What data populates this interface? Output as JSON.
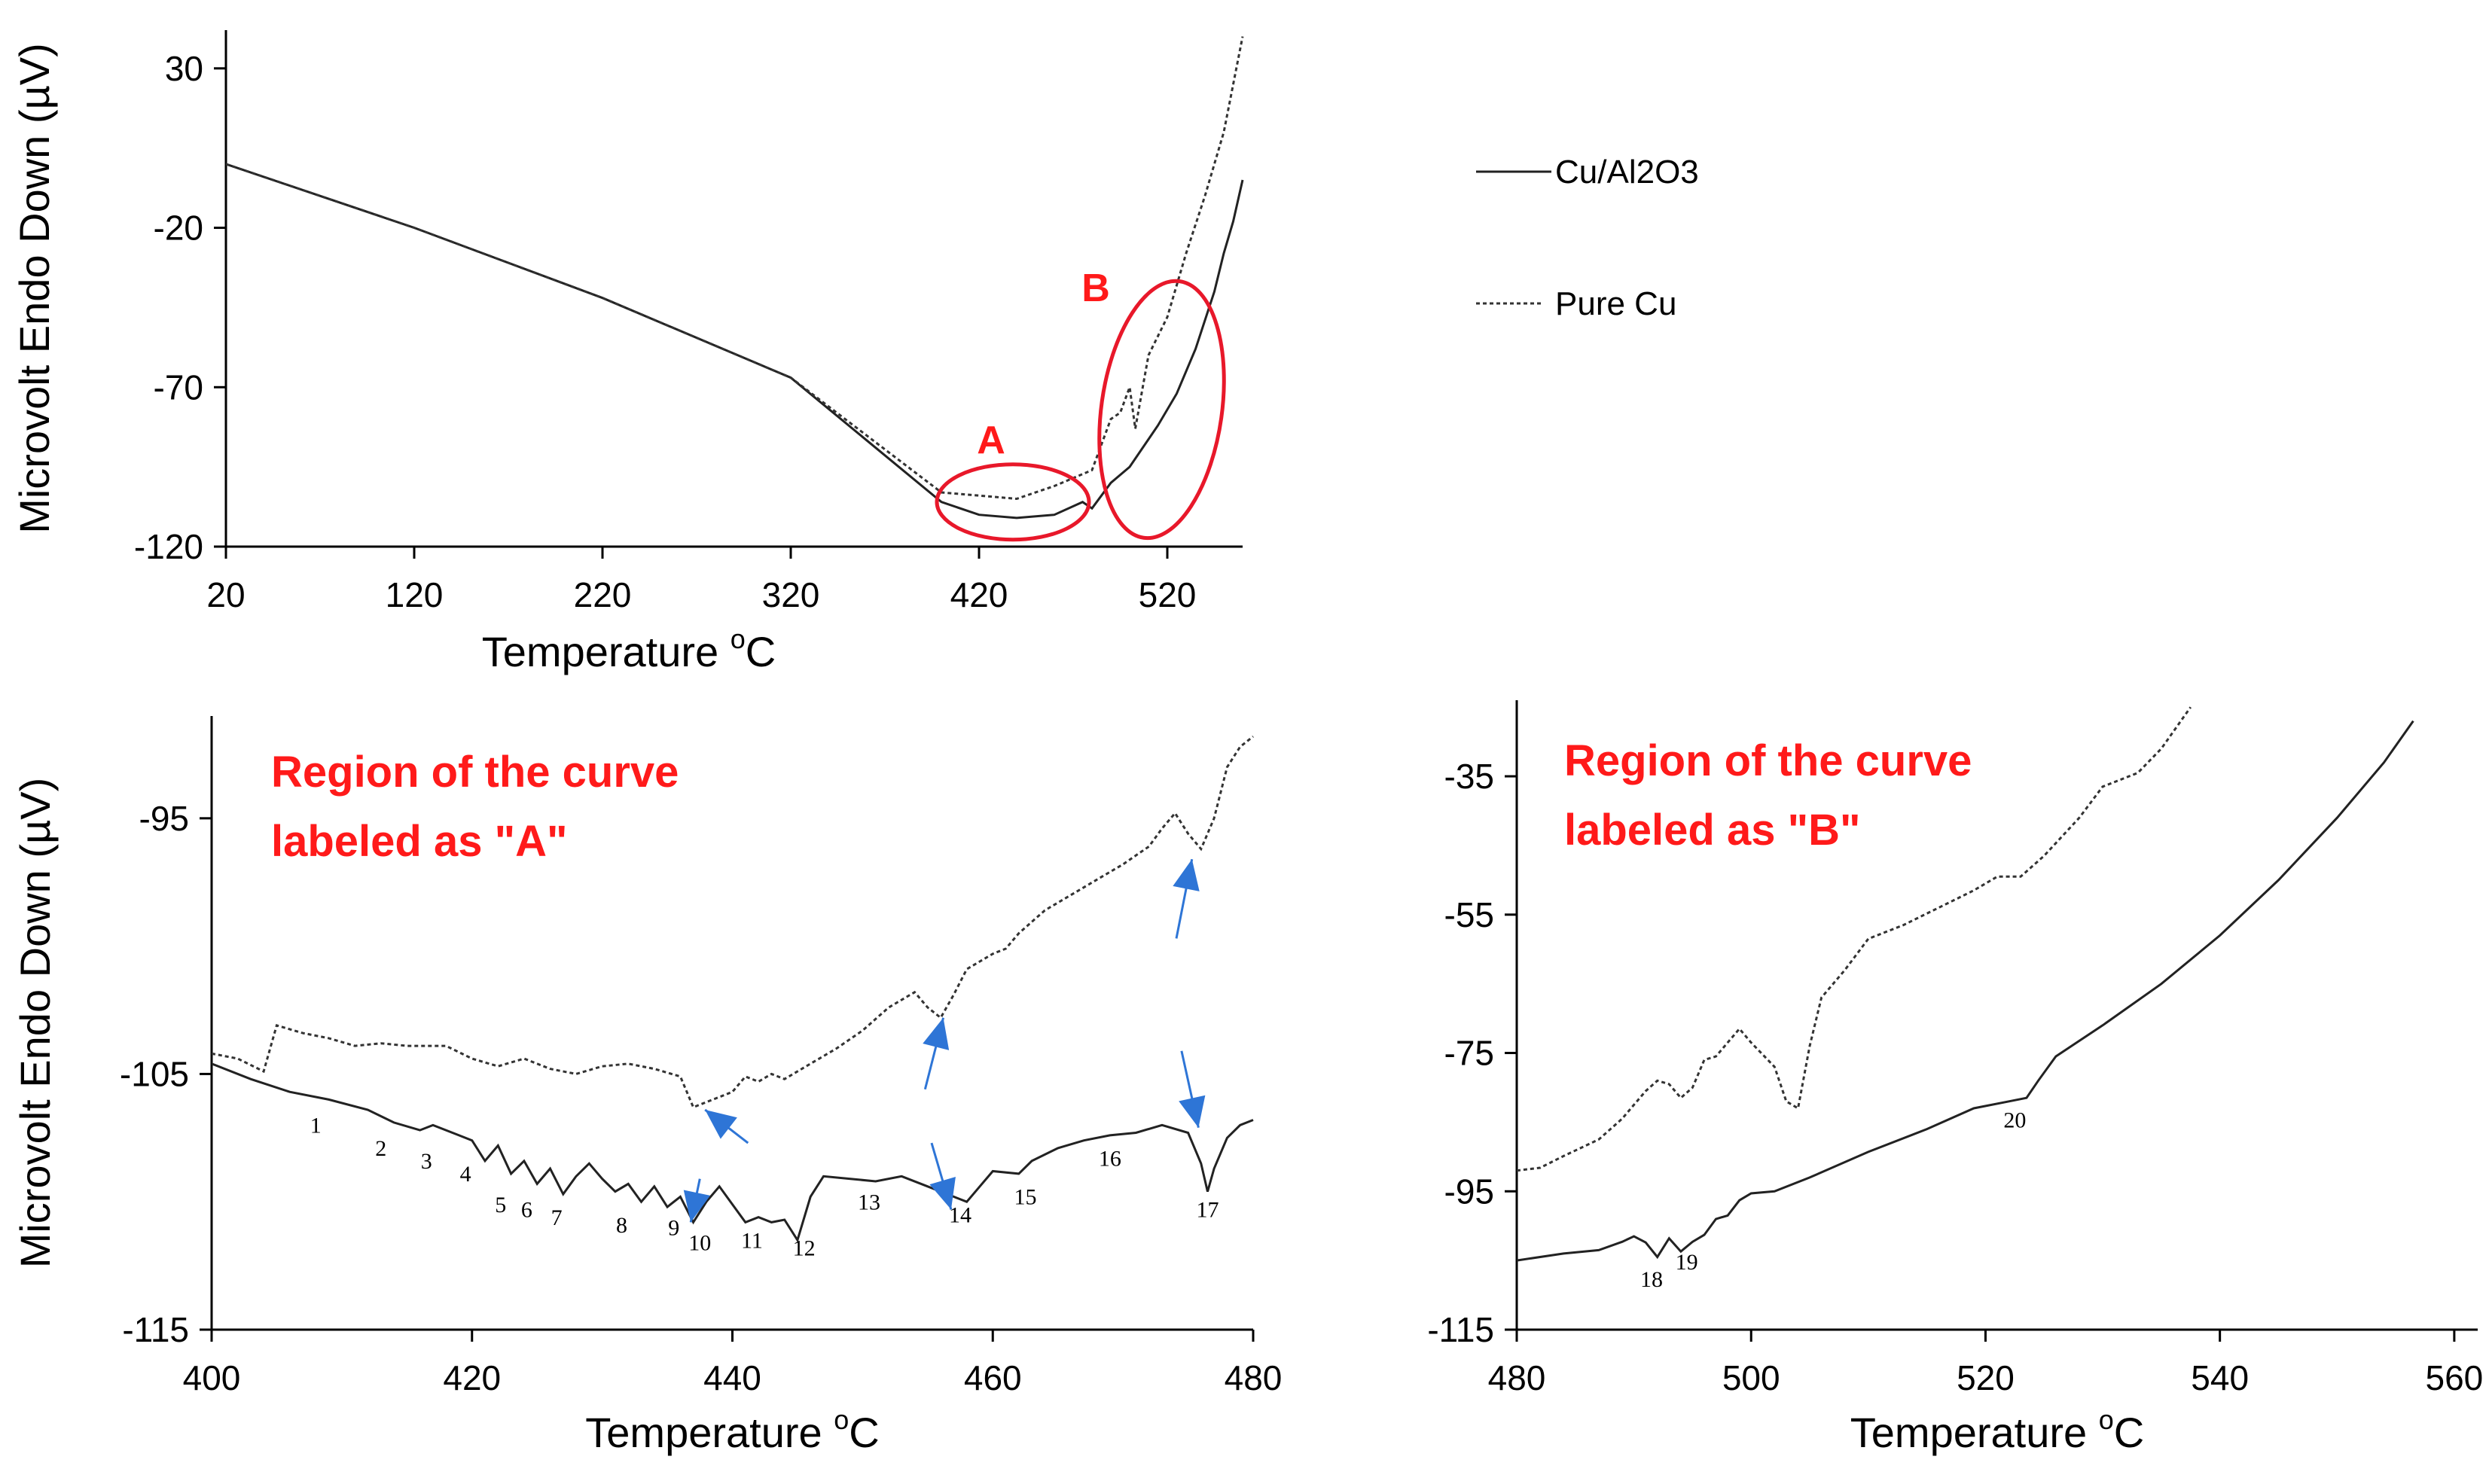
{
  "chart_data": [
    {
      "type": "line",
      "id": "overview",
      "xlabel": "Temperature",
      "xlabel_sup": "o",
      "xlabel_unit": "C",
      "ylabel": "Microvolt Endo Down (µV)",
      "xlim": [
        20,
        560
      ],
      "ylim": [
        -120,
        42
      ],
      "xticks": [
        20,
        120,
        220,
        320,
        420,
        520
      ],
      "yticks": [
        30,
        -20,
        -70,
        -120
      ],
      "legend_position": "right",
      "series": [
        {
          "name": "Cu/Al2O3",
          "style": "solid",
          "points": [
            [
              20,
              0
            ],
            [
              120,
              -20
            ],
            [
              220,
              -42
            ],
            [
              320,
              -67
            ],
            [
              400,
              -106
            ],
            [
              420,
              -110
            ],
            [
              440,
              -111
            ],
            [
              460,
              -110
            ],
            [
              475,
              -106
            ],
            [
              480,
              -108
            ],
            [
              490,
              -100
            ],
            [
              500,
              -95
            ],
            [
              515,
              -82
            ],
            [
              525,
              -72
            ],
            [
              535,
              -58
            ],
            [
              545,
              -40
            ],
            [
              550,
              -28
            ],
            [
              555,
              -18
            ],
            [
              560,
              -5
            ]
          ]
        },
        {
          "name": "Pure Cu",
          "style": "dashed",
          "points": [
            [
              20,
              0
            ],
            [
              120,
              -20
            ],
            [
              220,
              -42
            ],
            [
              320,
              -67
            ],
            [
              400,
              -103
            ],
            [
              420,
              -104
            ],
            [
              440,
              -105
            ],
            [
              460,
              -101
            ],
            [
              480,
              -96
            ],
            [
              490,
              -80
            ],
            [
              495,
              -78
            ],
            [
              500,
              -70
            ],
            [
              503,
              -83
            ],
            [
              510,
              -60
            ],
            [
              520,
              -48
            ],
            [
              530,
              -28
            ],
            [
              540,
              -10
            ],
            [
              550,
              10
            ],
            [
              560,
              40
            ]
          ]
        }
      ],
      "annotations": [
        {
          "label": "A",
          "center": [
            438,
            -106
          ]
        },
        {
          "label": "B",
          "center": [
            517,
            -77
          ]
        }
      ]
    },
    {
      "type": "line",
      "id": "region_a",
      "title": "Region of the curve labeled as \"A\"",
      "xlabel": "Temperature",
      "xlabel_sup": "o",
      "xlabel_unit": "C",
      "ylabel": "Microvolt Endo Down (µV)",
      "xlim": [
        400,
        480
      ],
      "ylim": [
        -115,
        -91
      ],
      "xticks": [
        400,
        420,
        440,
        460,
        480
      ],
      "yticks": [
        -95,
        -105,
        -115
      ],
      "series": [
        {
          "name": "Cu/Al2O3",
          "style": "solid",
          "points": [
            [
              400,
              -104.6
            ],
            [
              403,
              -105.2
            ],
            [
              406,
              -105.7
            ],
            [
              409,
              -106.0
            ],
            [
              412,
              -106.4
            ],
            [
              414,
              -106.9
            ],
            [
              416,
              -107.2
            ],
            [
              417,
              -107.0
            ],
            [
              419,
              -107.4
            ],
            [
              420,
              -107.6
            ],
            [
              421,
              -108.4
            ],
            [
              422,
              -107.8
            ],
            [
              423,
              -108.9
            ],
            [
              424,
              -108.4
            ],
            [
              425,
              -109.3
            ],
            [
              426,
              -108.7
            ],
            [
              427,
              -109.7
            ],
            [
              428,
              -109.0
            ],
            [
              429,
              -108.5
            ],
            [
              430,
              -109.1
            ],
            [
              431,
              -109.6
            ],
            [
              432,
              -109.3
            ],
            [
              433,
              -110.0
            ],
            [
              434,
              -109.4
            ],
            [
              435,
              -110.2
            ],
            [
              436,
              -109.8
            ],
            [
              437,
              -110.8
            ],
            [
              438,
              -110.0
            ],
            [
              439,
              -109.4
            ],
            [
              440,
              -110.1
            ],
            [
              441,
              -110.8
            ],
            [
              442,
              -110.6
            ],
            [
              443,
              -110.8
            ],
            [
              444,
              -110.7
            ],
            [
              445,
              -111.5
            ],
            [
              446,
              -109.8
            ],
            [
              447,
              -109.0
            ],
            [
              449,
              -109.1
            ],
            [
              451,
              -109.2
            ],
            [
              453,
              -109.0
            ],
            [
              455,
              -109.4
            ],
            [
              457,
              -109.8
            ],
            [
              458,
              -110.0
            ],
            [
              459,
              -109.4
            ],
            [
              460,
              -108.8
            ],
            [
              462,
              -108.9
            ],
            [
              463,
              -108.4
            ],
            [
              465,
              -107.9
            ],
            [
              467,
              -107.6
            ],
            [
              469,
              -107.4
            ],
            [
              471,
              -107.3
            ],
            [
              473,
              -107.0
            ],
            [
              475,
              -107.3
            ],
            [
              476,
              -108.5
            ],
            [
              476.5,
              -109.6
            ],
            [
              477,
              -108.7
            ],
            [
              478,
              -107.5
            ],
            [
              479,
              -107.0
            ],
            [
              480,
              -106.8
            ]
          ]
        },
        {
          "name": "Pure Cu",
          "style": "dashed",
          "points": [
            [
              400,
              -104.2
            ],
            [
              402,
              -104.4
            ],
            [
              404,
              -104.9
            ],
            [
              405,
              -103.1
            ],
            [
              407,
              -103.4
            ],
            [
              409,
              -103.6
            ],
            [
              411,
              -103.9
            ],
            [
              413,
              -103.8
            ],
            [
              415,
              -103.9
            ],
            [
              418,
              -103.9
            ],
            [
              420,
              -104.4
            ],
            [
              422,
              -104.7
            ],
            [
              424,
              -104.4
            ],
            [
              426,
              -104.8
            ],
            [
              428,
              -105.0
            ],
            [
              430,
              -104.7
            ],
            [
              432,
              -104.6
            ],
            [
              434,
              -104.8
            ],
            [
              436,
              -105.1
            ],
            [
              437,
              -106.3
            ],
            [
              438,
              -106.1
            ],
            [
              440,
              -105.7
            ],
            [
              441,
              -105.1
            ],
            [
              442,
              -105.3
            ],
            [
              443,
              -105.0
            ],
            [
              444,
              -105.2
            ],
            [
              446,
              -104.6
            ],
            [
              448,
              -104.0
            ],
            [
              450,
              -103.3
            ],
            [
              452,
              -102.4
            ],
            [
              454,
              -101.8
            ],
            [
              455,
              -102.4
            ],
            [
              456,
              -102.8
            ],
            [
              457,
              -101.9
            ],
            [
              458,
              -100.9
            ],
            [
              460,
              -100.3
            ],
            [
              461,
              -100.1
            ],
            [
              462,
              -99.5
            ],
            [
              464,
              -98.6
            ],
            [
              466,
              -98.0
            ],
            [
              468,
              -97.4
            ],
            [
              470,
              -96.8
            ],
            [
              472,
              -96.1
            ],
            [
              473,
              -95.4
            ],
            [
              474,
              -94.8
            ],
            [
              475,
              -95.6
            ],
            [
              476,
              -96.2
            ],
            [
              477,
              -95.0
            ],
            [
              478,
              -93.0
            ],
            [
              479,
              -92.2
            ],
            [
              480,
              -91.8
            ]
          ]
        }
      ],
      "peak_labels": [
        {
          "text": "1",
          "x": 408,
          "y": -107.3
        },
        {
          "text": "2",
          "x": 413,
          "y": -108.2
        },
        {
          "text": "3",
          "x": 416.5,
          "y": -108.7
        },
        {
          "text": "4",
          "x": 419.5,
          "y": -109.2
        },
        {
          "text": "5",
          "x": 422.2,
          "y": -110.4
        },
        {
          "text": "6",
          "x": 424.2,
          "y": -110.6
        },
        {
          "text": "7",
          "x": 426.5,
          "y": -110.9
        },
        {
          "text": "8",
          "x": 431.5,
          "y": -111.2
        },
        {
          "text": "9",
          "x": 435.5,
          "y": -111.3
        },
        {
          "text": "10",
          "x": 437.5,
          "y": -111.9
        },
        {
          "text": "11",
          "x": 441.5,
          "y": -111.8
        },
        {
          "text": "12",
          "x": 445.5,
          "y": -112.1
        },
        {
          "text": "13",
          "x": 450.5,
          "y": -110.3
        },
        {
          "text": "14",
          "x": 457.5,
          "y": -110.8
        },
        {
          "text": "15",
          "x": 462.5,
          "y": -110.1
        },
        {
          "text": "16",
          "x": 469,
          "y": -108.6
        },
        {
          "text": "17",
          "x": 476.5,
          "y": -110.6
        }
      ],
      "arrows": [
        {
          "from": [
            437.5,
            -109.1
          ],
          "to": [
            436.8,
            -110.8
          ]
        },
        {
          "from": [
            441.2,
            -107.7
          ],
          "to": [
            437.9,
            -106.4
          ]
        },
        {
          "from": [
            454.8,
            -105.6
          ],
          "to": [
            456.2,
            -102.8
          ]
        },
        {
          "from": [
            455.3,
            -107.7
          ],
          "to": [
            456.8,
            -110.3
          ]
        },
        {
          "from": [
            474.1,
            -99.7
          ],
          "to": [
            475.3,
            -96.6
          ]
        },
        {
          "from": [
            474.5,
            -104.1
          ],
          "to": [
            475.8,
            -107.1
          ]
        }
      ]
    },
    {
      "type": "line",
      "id": "region_b",
      "title": "Region of the curve labeled as \"B\"",
      "xlabel": "Temperature",
      "xlabel_sup": "o",
      "xlabel_unit": "C",
      "ylabel": "",
      "xlim": [
        480,
        562
      ],
      "ylim": [
        -115,
        -24
      ],
      "xticks": [
        480,
        500,
        520,
        540,
        560
      ],
      "yticks": [
        -35,
        -55,
        -75,
        -95,
        -115
      ],
      "series": [
        {
          "name": "Cu/Al2O3",
          "style": "solid",
          "points": [
            [
              480,
              -105.0
            ],
            [
              484,
              -104.0
            ],
            [
              487,
              -103.5
            ],
            [
              489,
              -102.3
            ],
            [
              490,
              -101.5
            ],
            [
              491,
              -102.4
            ],
            [
              492,
              -104.5
            ],
            [
              493,
              -101.8
            ],
            [
              494,
              -103.7
            ],
            [
              495,
              -102.3
            ],
            [
              496,
              -101.3
            ],
            [
              497,
              -99.0
            ],
            [
              498,
              -98.5
            ],
            [
              499,
              -96.3
            ],
            [
              500,
              -95.3
            ],
            [
              502,
              -95.0
            ],
            [
              505,
              -93.0
            ],
            [
              510,
              -89.3
            ],
            [
              515,
              -86.0
            ],
            [
              519,
              -83.0
            ],
            [
              522,
              -82.0
            ],
            [
              523.5,
              -81.5
            ],
            [
              524.5,
              -79.0
            ],
            [
              526,
              -75.5
            ],
            [
              530,
              -71.0
            ],
            [
              535,
              -65.0
            ],
            [
              540,
              -58.0
            ],
            [
              545,
              -50.0
            ],
            [
              550,
              -41.0
            ],
            [
              554,
              -33.0
            ],
            [
              556.5,
              -27.0
            ]
          ]
        },
        {
          "name": "Pure Cu",
          "style": "dashed",
          "points": [
            [
              480,
              -92.0
            ],
            [
              482,
              -91.6
            ],
            [
              484,
              -89.9
            ],
            [
              487,
              -87.5
            ],
            [
              489,
              -84.5
            ],
            [
              490,
              -82.5
            ],
            [
              491,
              -80.5
            ],
            [
              492,
              -79.0
            ],
            [
              493,
              -79.5
            ],
            [
              494,
              -81.5
            ],
            [
              495,
              -80.0
            ],
            [
              496,
              -76.0
            ],
            [
              497,
              -75.5
            ],
            [
              498,
              -73.5
            ],
            [
              499,
              -71.5
            ],
            [
              500,
              -73.5
            ],
            [
              502,
              -77.0
            ],
            [
              503,
              -82.0
            ],
            [
              504,
              -83.0
            ],
            [
              505,
              -74.0
            ],
            [
              506,
              -67.0
            ],
            [
              508,
              -63.0
            ],
            [
              510,
              -58.5
            ],
            [
              513,
              -56.5
            ],
            [
              516,
              -54.0
            ],
            [
              519,
              -51.5
            ],
            [
              521,
              -49.5
            ],
            [
              523,
              -49.5
            ],
            [
              525,
              -46.5
            ],
            [
              528,
              -41.0
            ],
            [
              530,
              -36.5
            ],
            [
              533,
              -34.5
            ],
            [
              535,
              -31.0
            ],
            [
              537.5,
              -25.0
            ]
          ]
        }
      ],
      "peak_labels": [
        {
          "text": "18",
          "x": 491.5,
          "y": -108.8
        },
        {
          "text": "19",
          "x": 494.5,
          "y": -106.3
        },
        {
          "text": "20",
          "x": 522.5,
          "y": -85.8
        }
      ]
    }
  ]
}
